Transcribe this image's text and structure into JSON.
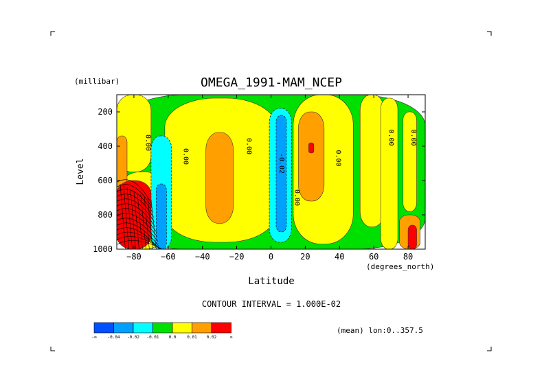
{
  "chart_data": {
    "type": "heatmap",
    "title": "OMEGA_1991-MAM_NCEP",
    "xlabel": "Latitude",
    "x_units": "(degrees_north)",
    "ylabel": "Level",
    "y_units": "(millibar)",
    "xlim": [
      -90,
      90
    ],
    "ylim": [
      1000,
      100
    ],
    "x_ticks": [
      -80,
      -60,
      -40,
      -20,
      0,
      20,
      40,
      60,
      80
    ],
    "x_tick_labels": [
      "−80",
      "−60",
      "−40",
      "−20",
      "0",
      "20",
      "40",
      "60",
      "80"
    ],
    "y_ticks": [
      200,
      400,
      600,
      800,
      1000
    ],
    "y_tick_labels": [
      "200",
      "400",
      "600",
      "800",
      "1000"
    ],
    "contour_interval_text": "CONTOUR INTERVAL = 1.000E-02",
    "mean_text": "(mean) lon:0..357.5",
    "colorbar": {
      "colors": [
        "#0050ff",
        "#00a0ff",
        "#00ffff",
        "#00e000",
        "#ffff00",
        "#ffa000",
        "#ff0000"
      ],
      "labels": [
        "-∞",
        "-0.04",
        "-0.02",
        "-0.01",
        "0.0",
        "0.01",
        "0.02",
        "∞"
      ]
    },
    "contour_labels": [
      {
        "text": "0.00",
        "lat": -73,
        "lev": 380
      },
      {
        "text": "0.00",
        "lat": -51,
        "lev": 460
      },
      {
        "text": "0.00",
        "lat": -14,
        "lev": 400
      },
      {
        "text": "-0.02",
        "lat": 5,
        "lev": 500
      },
      {
        "text": "0.00",
        "lat": 14,
        "lev": 700
      },
      {
        "text": "0.00",
        "lat": 38,
        "lev": 470
      },
      {
        "text": "0.00",
        "lat": 69,
        "lev": 350
      },
      {
        "text": "0.00",
        "lat": 82,
        "lev": 350
      }
    ],
    "regions": [
      {
        "level": "green",
        "lat": [
          -90,
          90
        ],
        "lev": [
          100,
          1000
        ]
      },
      {
        "level": "yellow",
        "lat": [
          -90,
          -70
        ],
        "lev": [
          100,
          550
        ]
      },
      {
        "level": "yellow",
        "lat": [
          -62,
          3
        ],
        "lev": [
          120,
          960
        ]
      },
      {
        "level": "yellow",
        "lat": [
          13,
          48
        ],
        "lev": [
          100,
          970
        ]
      },
      {
        "level": "yellow",
        "lat": [
          52,
          66
        ],
        "lev": [
          100,
          870
        ]
      },
      {
        "level": "yellow",
        "lat": [
          64,
          74
        ],
        "lev": [
          120,
          1000
        ]
      },
      {
        "level": "yellow",
        "lat": [
          77,
          85
        ],
        "lev": [
          200,
          780
        ]
      },
      {
        "level": "yellow",
        "lat": [
          -88,
          -62
        ],
        "lev": [
          550,
          1000
        ]
      },
      {
        "level": "cyan",
        "lat": [
          -70,
          -58
        ],
        "lev": [
          340,
          1000
        ]
      },
      {
        "level": "blue",
        "lat": [
          -67,
          -61
        ],
        "lev": [
          620,
          1000
        ]
      },
      {
        "level": "cyan",
        "lat": [
          -1,
          12
        ],
        "lev": [
          180,
          960
        ]
      },
      {
        "level": "blue",
        "lat": [
          3,
          9
        ],
        "lev": [
          220,
          900
        ]
      },
      {
        "level": "orange",
        "lat": [
          -38,
          -22
        ],
        "lev": [
          320,
          850
        ]
      },
      {
        "level": "orange",
        "lat": [
          16,
          31
        ],
        "lev": [
          200,
          720
        ]
      },
      {
        "level": "red",
        "lat": [
          22,
          25
        ],
        "lev": [
          380,
          440
        ]
      },
      {
        "level": "orange",
        "lat": [
          -90,
          -84
        ],
        "lev": [
          340,
          900
        ]
      },
      {
        "level": "red",
        "lat": [
          -90,
          -70
        ],
        "lev": [
          600,
          1000
        ]
      },
      {
        "level": "orange",
        "lat": [
          75,
          87
        ],
        "lev": [
          800,
          1000
        ]
      },
      {
        "level": "red",
        "lat": [
          80,
          85
        ],
        "lev": [
          860,
          1000
        ]
      }
    ]
  }
}
